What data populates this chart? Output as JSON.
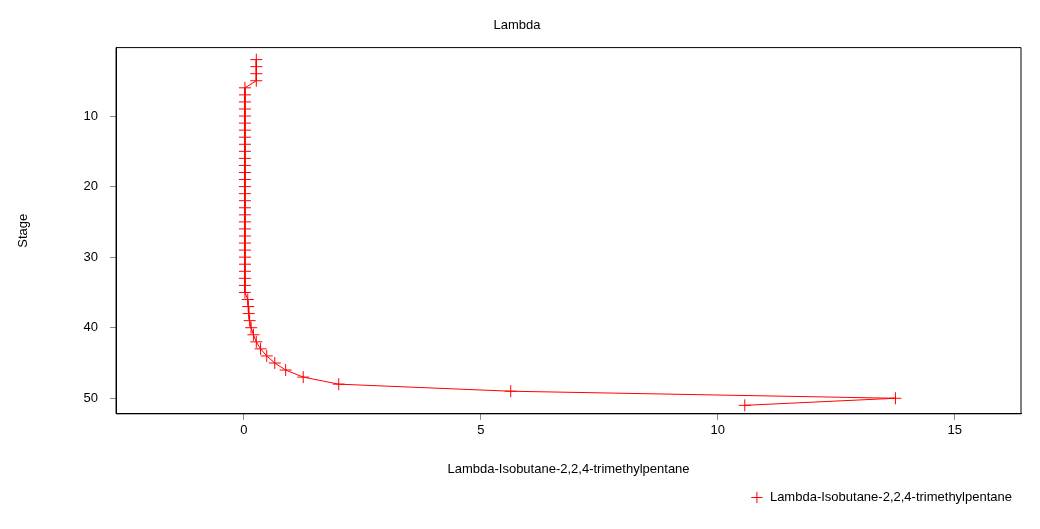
{
  "chart_data": {
    "type": "line",
    "title": "Lambda",
    "xlabel": "Lambda-Isobutane-2,2,4-trimethylpentane",
    "ylabel": "Stage",
    "xlim": [
      -2.7,
      16.4
    ],
    "xticks": [
      0,
      5,
      10,
      15
    ],
    "ylim": [
      52.2,
      0.3
    ],
    "yticks": [
      10,
      20,
      30,
      40,
      50
    ],
    "grid": false,
    "legend": "bottom right",
    "marker": "cross",
    "line_style": "solid",
    "series": [
      {
        "name": "Lambda-Isobutane-2,2,4-trimethylpentane",
        "color": "#ff0000",
        "x": [
          0.26,
          0.26,
          0.26,
          0.26,
          0.02,
          0.02,
          0.02,
          0.02,
          0.02,
          0.02,
          0.02,
          0.02,
          0.02,
          0.02,
          0.02,
          0.02,
          0.02,
          0.02,
          0.02,
          0.02,
          0.02,
          0.02,
          0.02,
          0.02,
          0.02,
          0.02,
          0.02,
          0.02,
          0.02,
          0.02,
          0.02,
          0.02,
          0.02,
          0.02,
          0.08,
          0.09,
          0.1,
          0.12,
          0.15,
          0.2,
          0.26,
          0.35,
          0.48,
          0.65,
          0.88,
          1.25,
          2.0,
          5.63,
          13.75,
          10.57
        ],
        "values": [
          2,
          3,
          4,
          5,
          6,
          7,
          8,
          9,
          10,
          11,
          12,
          13,
          14,
          15,
          16,
          17,
          18,
          19,
          20,
          21,
          22,
          23,
          24,
          25,
          26,
          27,
          28,
          29,
          30,
          31,
          32,
          33,
          34,
          35,
          36,
          37,
          38,
          39,
          40,
          41,
          42,
          43,
          44,
          45,
          46,
          47,
          48,
          49,
          50,
          51
        ]
      }
    ]
  }
}
